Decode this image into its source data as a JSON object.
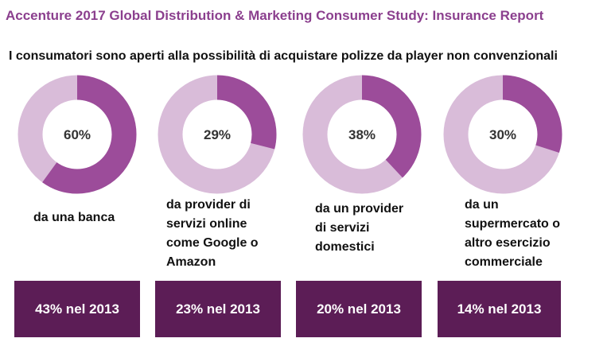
{
  "title": "Accenture 2017 Global Distribution & Marketing Consumer Study: Insurance Report",
  "subtitle": "I consumatori sono aperti alla possibilità di acquistare polizze da player non convenzionali",
  "colors": {
    "accent": "#9c4c9a",
    "track": "#d9bcd9",
    "box": "#5c1d56",
    "title": "#8b3f8e"
  },
  "chart_data": {
    "type": "pie",
    "categories": [
      "da una banca",
      "da provider di servizi online come Google o Amazon",
      "da un provider di servizi domestici",
      "da un supermercato o altro esercizio commerciale"
    ],
    "values": [
      60,
      29,
      38,
      30
    ],
    "value_labels": [
      "60%",
      "29%",
      "38%",
      "30%"
    ],
    "label_lines": [
      [
        "da una banca"
      ],
      [
        "da provider di",
        "servizi online",
        "come Google o",
        "Amazon"
      ],
      [
        "da un provider",
        "di servizi",
        "domestici"
      ],
      [
        "da un",
        "supermercato o",
        "altro esercizio",
        "commerciale"
      ]
    ],
    "comparison_2013": [
      "43% nel 2013",
      "23% nel 2013",
      "20% nel 2013",
      "14% nel 2013"
    ]
  }
}
